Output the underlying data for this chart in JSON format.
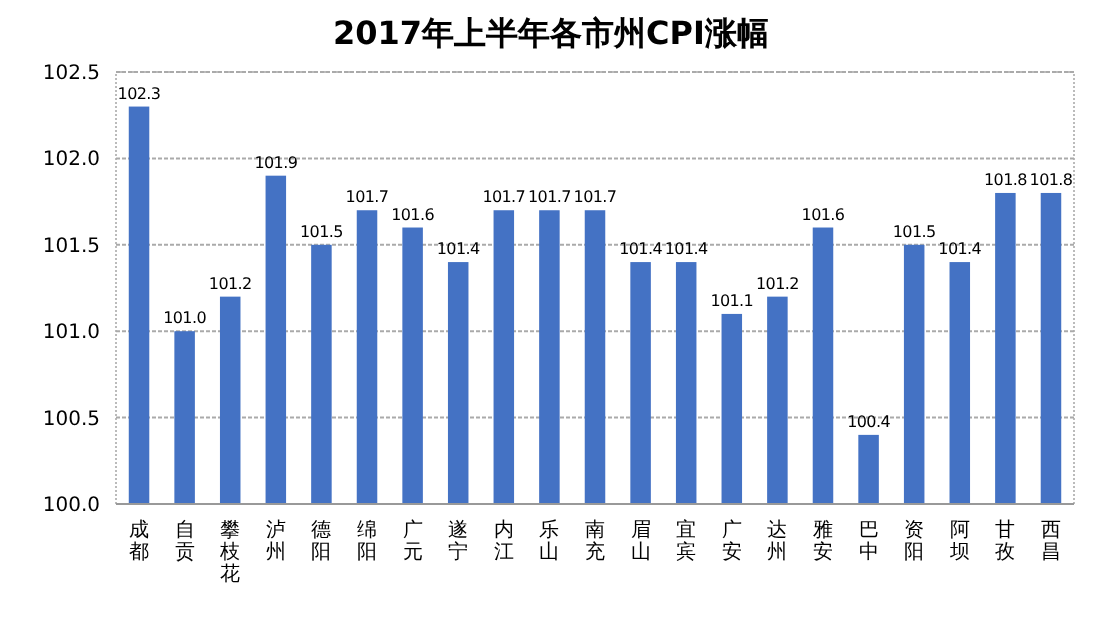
{
  "chart_data": {
    "type": "bar",
    "title": "2017年上半年各市州CPI涨幅",
    "categories": [
      "成都",
      "自贡",
      "攀枝花",
      "泸州",
      "德阳",
      "绵阳",
      "广元",
      "遂宁",
      "内江",
      "乐山",
      "南充",
      "眉山",
      "宜宾",
      "广安",
      "达州",
      "雅安",
      "巴中",
      "资阳",
      "阿坝",
      "甘孜",
      "西昌"
    ],
    "values": [
      102.3,
      101.0,
      101.2,
      101.9,
      101.5,
      101.7,
      101.6,
      101.4,
      101.7,
      101.7,
      101.7,
      101.4,
      101.4,
      101.1,
      101.2,
      101.6,
      100.4,
      101.5,
      101.4,
      101.8,
      101.8
    ],
    "color": "#4472c4",
    "ylim": [
      100,
      102.5
    ],
    "yticks": [
      {
        "value": 100,
        "label": "100.0"
      },
      {
        "value": 100.5,
        "label": "100.5"
      },
      {
        "value": 101,
        "label": "101.0"
      },
      {
        "value": 101.5,
        "label": "101.5"
      },
      {
        "value": 102,
        "label": "102.0"
      },
      {
        "value": 102.5,
        "label": "102.5"
      }
    ],
    "value_labels": [
      "102.3",
      "101.0",
      "101.2",
      "101.9",
      "101.5",
      "101.7",
      "101.6",
      "101.4",
      "101.7",
      "101.7",
      "101.7",
      "101.4",
      "101.4",
      "101.1",
      "101.2",
      "101.6",
      "100.4",
      "101.5",
      "101.4",
      "101.8",
      "101.8"
    ],
    "grid": "y"
  }
}
